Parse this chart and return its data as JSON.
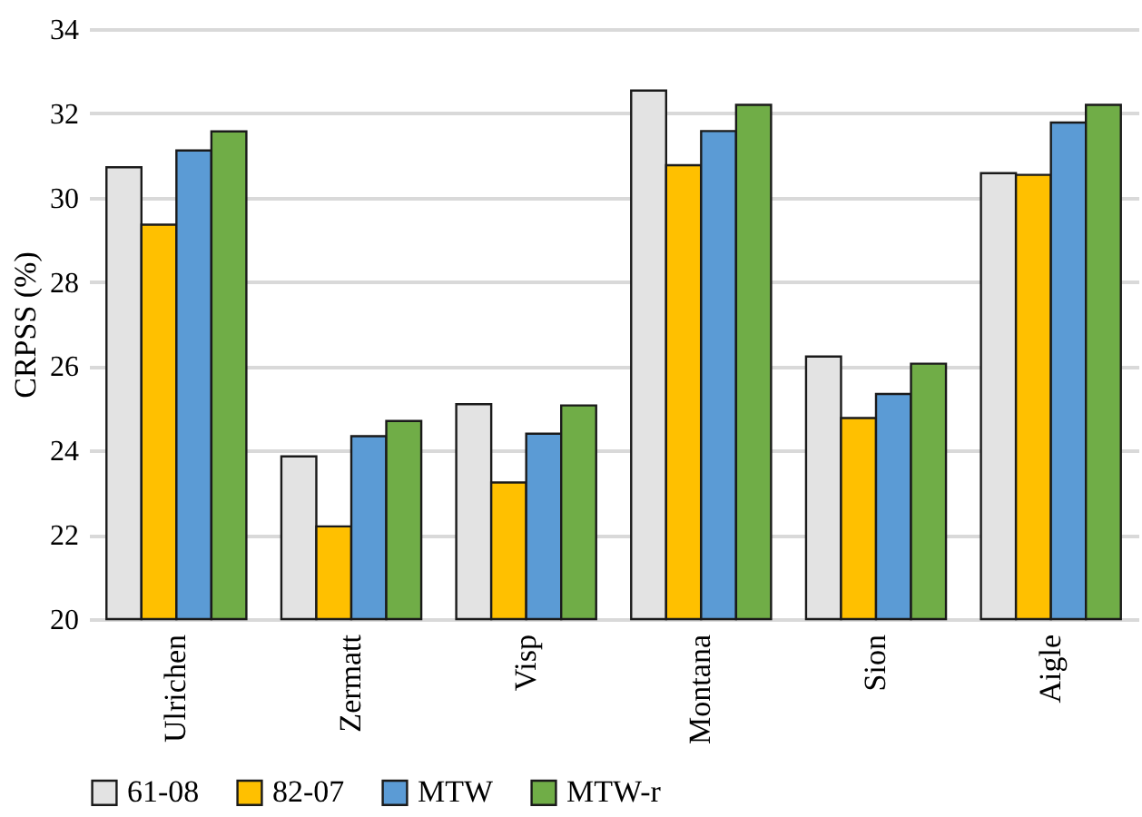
{
  "chart_data": {
    "type": "bar",
    "ylabel": "CRPSS (%)",
    "categories": [
      "Ulrichen",
      "Zermatt",
      "Visp",
      "Montana",
      "Sion",
      "Aigle"
    ],
    "series": [
      {
        "name": "61-08",
        "color": "#e3e3e3",
        "values": [
          30.72,
          23.86,
          25.1,
          32.54,
          26.23,
          30.58
        ]
      },
      {
        "name": "82-07",
        "color": "#ffc000",
        "values": [
          29.36,
          22.2,
          23.24,
          30.77,
          24.77,
          30.54
        ]
      },
      {
        "name": "MTW",
        "color": "#5b9bd5",
        "values": [
          31.12,
          24.34,
          24.4,
          31.58,
          25.34,
          31.78
        ]
      },
      {
        "name": "MTW-r",
        "color": "#70ad47",
        "values": [
          31.57,
          24.7,
          25.07,
          32.2,
          26.06,
          32.2
        ]
      }
    ],
    "ylim": [
      20,
      34
    ],
    "yticks": [
      20,
      22,
      24,
      26,
      28,
      30,
      32,
      34
    ],
    "grid": "y",
    "legend": "bottom"
  }
}
